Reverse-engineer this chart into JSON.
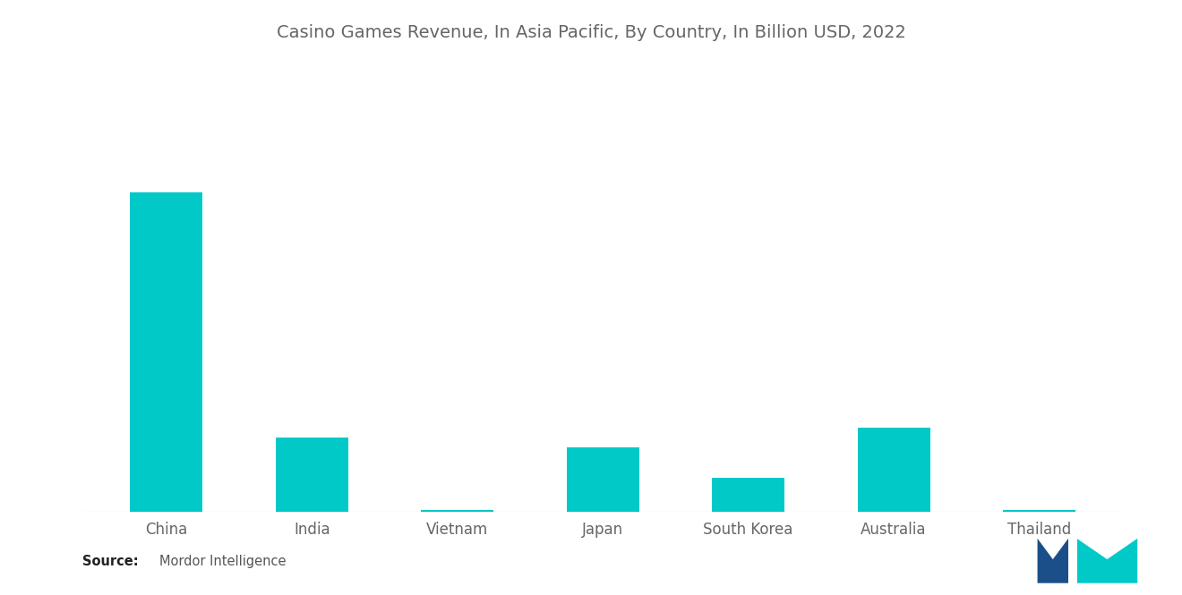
{
  "title": "Casino Games Revenue, In Asia Pacific, By Country, In Billion USD, 2022",
  "categories": [
    "China",
    "India",
    "Vietnam",
    "Japan",
    "South Korea",
    "Australia",
    "Thailand"
  ],
  "values": [
    9.5,
    2.2,
    0.06,
    1.9,
    1.0,
    2.5,
    0.04
  ],
  "bar_color": "#00C9C8",
  "background_color": "#ffffff",
  "title_color": "#666666",
  "xlabel_color": "#666666",
  "source_label": "Source:",
  "source_text": "  Mordor Intelligence",
  "title_fontsize": 14,
  "label_fontsize": 12
}
